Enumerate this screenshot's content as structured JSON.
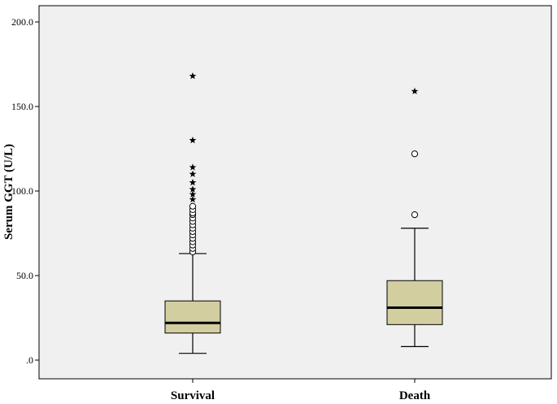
{
  "chart_data": {
    "type": "boxplot",
    "title": "",
    "xlabel": "",
    "ylabel": "Serum GGT (U/L)",
    "ylim": [
      0,
      200
    ],
    "yticks": [
      {
        "value": 0,
        "label": ".0"
      },
      {
        "value": 50,
        "label": "50.0"
      },
      {
        "value": 100,
        "label": "100.0"
      },
      {
        "value": 150,
        "label": "150.0"
      },
      {
        "value": 200,
        "label": "200.0"
      }
    ],
    "grid": false,
    "colors": {
      "plot_background": "#f0f0f0",
      "box_fill": "#d3ce9f",
      "stroke": "#000000"
    },
    "categories": [
      "Survival",
      "Death"
    ],
    "boxes": [
      {
        "category": "Survival",
        "whisker_low": 4,
        "q1": 16,
        "median": 22,
        "q3": 35,
        "whisker_high": 63,
        "outliers": [
          64,
          66,
          68,
          70,
          72,
          74,
          76,
          78,
          80,
          82,
          84,
          86,
          87,
          89,
          91
        ],
        "extremes": [
          95,
          98,
          101,
          105,
          110,
          114,
          130,
          168
        ]
      },
      {
        "category": "Death",
        "whisker_low": 8,
        "q1": 21,
        "median": 31,
        "q3": 47,
        "whisker_high": 78,
        "outliers": [
          86,
          122
        ],
        "extremes": [
          159
        ]
      }
    ]
  }
}
